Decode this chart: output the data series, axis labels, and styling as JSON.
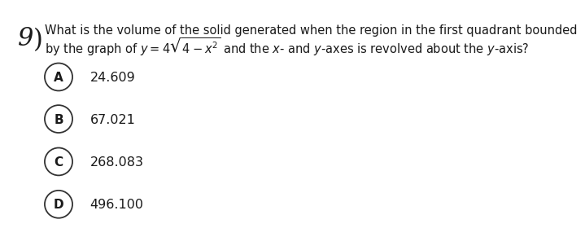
{
  "question_number": "9",
  "question_text_line1": "What is the volume of the solid generated when the region in the first quadrant bounded",
  "question_text_line2": "by the graph of $y = 4\\sqrt{4 - x^2}$ and the $x$- and $y$-axes is revolved about the $y$-axis?",
  "options": [
    {
      "label": "A",
      "value": "24.609"
    },
    {
      "label": "B",
      "value": "67.021"
    },
    {
      "label": "C",
      "value": "268.083"
    },
    {
      "label": "D",
      "value": "496.100"
    }
  ],
  "background_color": "#ffffff",
  "text_color": "#1a1a1a",
  "circle_color": "#333333",
  "font_size_question": 10.5,
  "font_size_options": 11.5,
  "font_size_label": 11,
  "font_size_qnum": 22
}
